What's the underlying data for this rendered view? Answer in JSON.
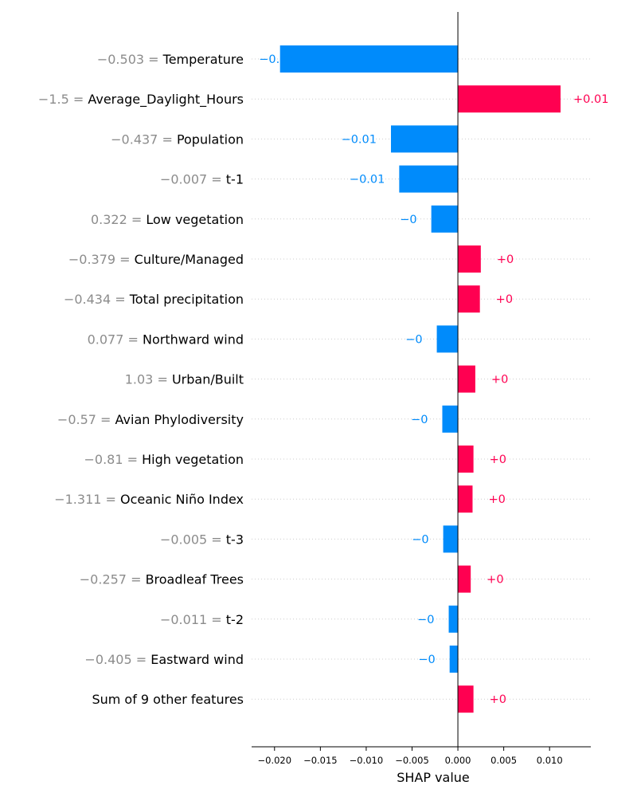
{
  "chart_data": {
    "type": "bar",
    "orientation": "horizontal",
    "chart_kind": "shap-waterfall-bar",
    "xlabel": "SHAP value",
    "xlim": [
      -0.0225,
      0.0145
    ],
    "x_ticks": [
      -0.02,
      -0.015,
      -0.01,
      -0.005,
      0.0,
      0.005,
      0.01
    ],
    "x_tick_labels": [
      "−0.020",
      "−0.015",
      "−0.010",
      "−0.005",
      "0.000",
      "0.005",
      "0.010"
    ],
    "positive_color": "#ff0051",
    "negative_color": "#008bfb",
    "grid": "horizontal dotted lines per row",
    "features": [
      {
        "value_label": "−0.503 =",
        "name": "Temperature",
        "shap": -0.0194,
        "label": "−0.02"
      },
      {
        "value_label": "−1.5 =",
        "name": "Average_Daylight_Hours",
        "shap": 0.0112,
        "label": "+0.01"
      },
      {
        "value_label": "−0.437 =",
        "name": "Population",
        "shap": -0.0073,
        "label": "−0.01"
      },
      {
        "value_label": "−0.007 =",
        "name": "t-1",
        "shap": -0.0064,
        "label": "−0.01"
      },
      {
        "value_label": "0.322 =",
        "name": "Low vegetation",
        "shap": -0.0029,
        "label": "−0"
      },
      {
        "value_label": "−0.379 =",
        "name": "Culture/Managed",
        "shap": 0.0025,
        "label": "+0"
      },
      {
        "value_label": "−0.434 =",
        "name": "Total precipitation",
        "shap": 0.0024,
        "label": "+0"
      },
      {
        "value_label": "0.077 =",
        "name": "Northward wind",
        "shap": -0.0023,
        "label": "−0"
      },
      {
        "value_label": "1.03 =",
        "name": "Urban/Built",
        "shap": 0.0019,
        "label": "+0"
      },
      {
        "value_label": "−0.57 =",
        "name": "Avian Phylodiversity",
        "shap": -0.0017,
        "label": "−0"
      },
      {
        "value_label": "−0.81 =",
        "name": "High vegetation",
        "shap": 0.0017,
        "label": "+0"
      },
      {
        "value_label": "−1.311 =",
        "name": "Oceanic Niño Index",
        "shap": 0.0016,
        "label": "+0"
      },
      {
        "value_label": "−0.005 =",
        "name": "t-3",
        "shap": -0.0016,
        "label": "−0"
      },
      {
        "value_label": "−0.257 =",
        "name": "Broadleaf Trees",
        "shap": 0.0014,
        "label": "+0"
      },
      {
        "value_label": "−0.011 =",
        "name": "t-2",
        "shap": -0.001,
        "label": "−0"
      },
      {
        "value_label": "−0.405 =",
        "name": "Eastward wind",
        "shap": -0.0009,
        "label": "−0"
      },
      {
        "value_label": "",
        "name": "Sum of 9 other features",
        "shap": 0.0017,
        "label": "+0"
      }
    ]
  }
}
